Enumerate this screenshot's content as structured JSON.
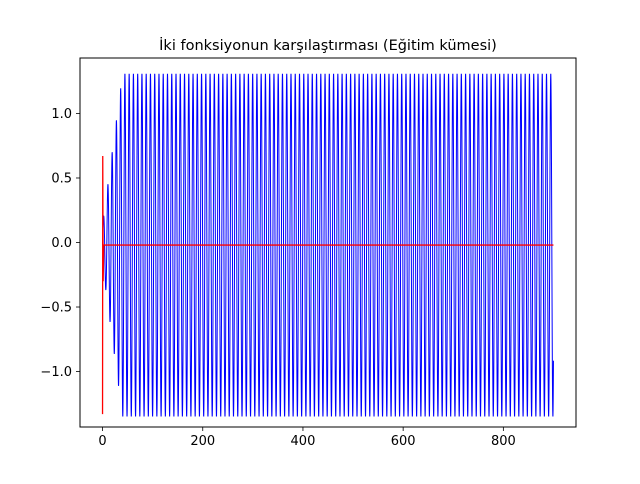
{
  "chart_data": {
    "type": "line",
    "title": "İki fonksiyonun karşılaştırması (Eğitim kümesi)",
    "xlabel": "",
    "ylabel": "",
    "xlim": [
      -45,
      945
    ],
    "ylim": [
      -1.43,
      1.43
    ],
    "x_ticks": [
      0,
      200,
      400,
      600,
      800
    ],
    "y_ticks": [
      -1.0,
      -0.5,
      0.0,
      0.5,
      1.0
    ],
    "x_tick_labels": [
      "0",
      "200",
      "400",
      "600",
      "800"
    ],
    "y_tick_labels": [
      "−1.0",
      "−0.5",
      "0.0",
      "0.5",
      "1.0"
    ],
    "grid": false,
    "legend": "none",
    "series": [
      {
        "color": "#0000ff",
        "description": "oscillating signal, x from 0 to 900, period ~8.5, amplitude growing to ~1.33 by x≈40",
        "x_range": [
          0,
          900
        ],
        "period": 8.5,
        "amplitude_max": 1.33,
        "rise_until_x": 40
      },
      {
        "color": "#ff0000",
        "description": "near-constant line at about -0.02 with a brief transient near x=0",
        "x_range": [
          0,
          900
        ],
        "values_start": [
          -1.33,
          0.67,
          -0.3,
          -0.02
        ],
        "steady_value": -0.02
      }
    ]
  }
}
